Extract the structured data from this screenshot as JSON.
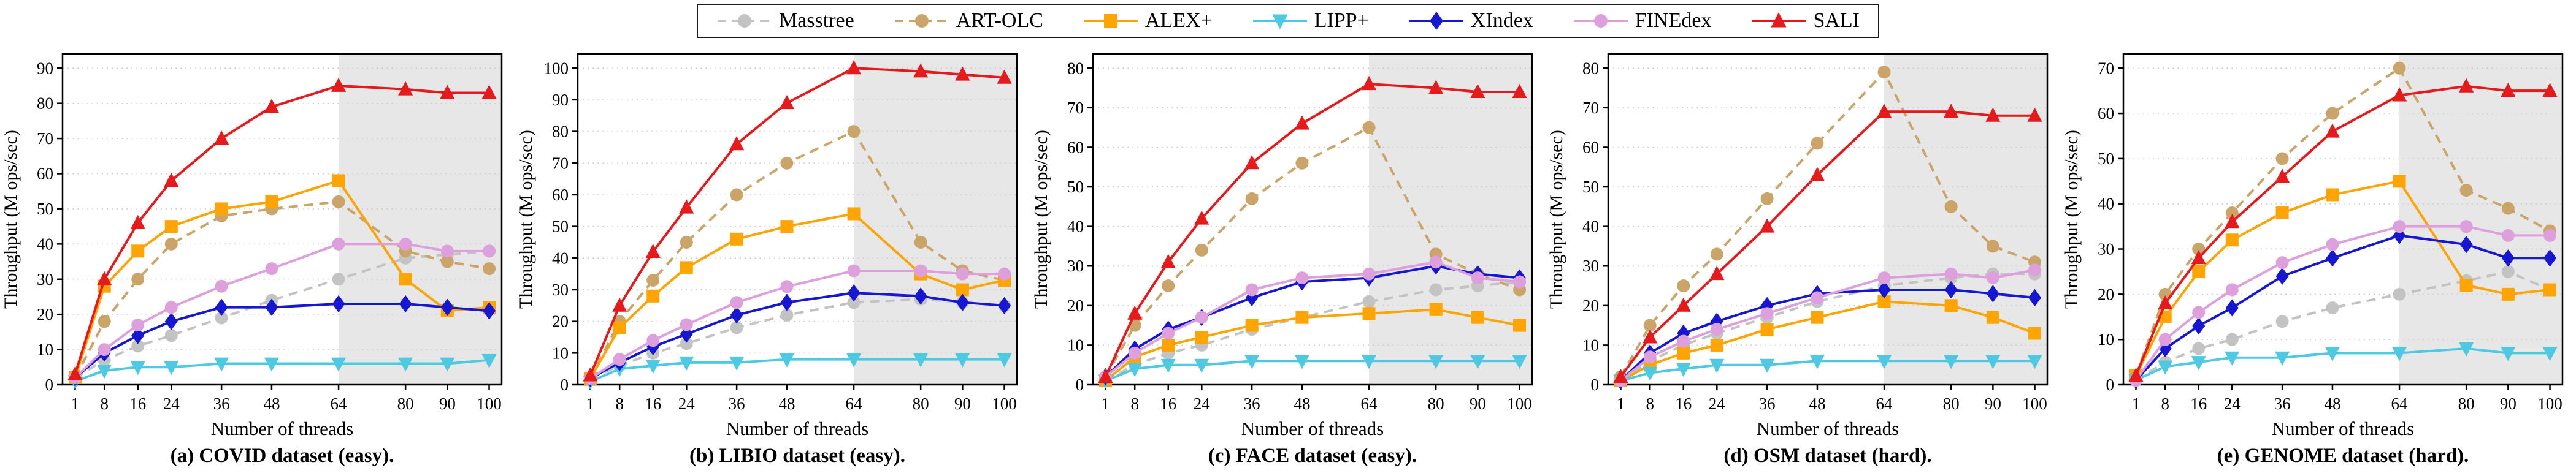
{
  "figure": {
    "kind": "five-panel line chart figure comparing index throughput scalability"
  },
  "legend": {
    "items": [
      "Masstree",
      "ART-OLC",
      "ALEX+",
      "LIPP+",
      "XIndex",
      "FINEdex",
      "SALI"
    ]
  },
  "series_styles": [
    {
      "name": "Masstree",
      "color": "#c3c3c3",
      "dash": true,
      "marker": "circle"
    },
    {
      "name": "ART-OLC",
      "color": "#cba469",
      "dash": true,
      "marker": "circle"
    },
    {
      "name": "ALEX+",
      "color": "#ffa405",
      "dash": false,
      "marker": "square"
    },
    {
      "name": "LIPP+",
      "color": "#4ec9e1",
      "dash": false,
      "marker": "triangle-down"
    },
    {
      "name": "XIndex",
      "color": "#1717d1",
      "dash": false,
      "marker": "diamond"
    },
    {
      "name": "FINEdex",
      "color": "#dda0dd",
      "dash": false,
      "marker": "circle"
    },
    {
      "name": "SALI",
      "color": "#e41a1c",
      "dash": false,
      "marker": "triangle-up"
    }
  ],
  "chart_data": [
    {
      "type": "line",
      "key": "covid",
      "title": "(a) COVID dataset (easy).",
      "xlabel": "Number of threads",
      "ylabel": "Throughput (M ops/sec)",
      "x": [
        1,
        8,
        16,
        24,
        36,
        48,
        64,
        80,
        90,
        100
      ],
      "xlim": [
        1,
        100
      ],
      "ylim": [
        0,
        90
      ],
      "ytick_step": 10,
      "grid": true,
      "shaded_region": [
        64,
        100
      ],
      "legend_position": "figure-top",
      "series": [
        {
          "name": "Masstree",
          "values": [
            2,
            7,
            11,
            14,
            19,
            24,
            30,
            36,
            37,
            38
          ]
        },
        {
          "name": "ART-OLC",
          "values": [
            2,
            18,
            30,
            40,
            48,
            50,
            52,
            38,
            35,
            33
          ]
        },
        {
          "name": "ALEX+",
          "values": [
            2,
            28,
            38,
            45,
            50,
            52,
            58,
            30,
            21,
            22
          ]
        },
        {
          "name": "LIPP+",
          "values": [
            1,
            4,
            5,
            5,
            6,
            6,
            6,
            6,
            6,
            7
          ]
        },
        {
          "name": "XIndex",
          "values": [
            2,
            9,
            14,
            18,
            22,
            22,
            23,
            23,
            22,
            21
          ]
        },
        {
          "name": "FINEdex",
          "values": [
            2,
            10,
            17,
            22,
            28,
            33,
            40,
            40,
            38,
            38
          ]
        },
        {
          "name": "SALI",
          "values": [
            3,
            30,
            46,
            58,
            70,
            79,
            85,
            84,
            83,
            83
          ]
        }
      ]
    },
    {
      "type": "line",
      "key": "libio",
      "title": "(b) LIBIO dataset (easy).",
      "xlabel": "Number of threads",
      "ylabel": "Throughput (M ops/sec)",
      "x": [
        1,
        8,
        16,
        24,
        36,
        48,
        64,
        80,
        90,
        100
      ],
      "xlim": [
        1,
        100
      ],
      "ylim": [
        0,
        100
      ],
      "ytick_step": 10,
      "grid": true,
      "shaded_region": [
        64,
        100
      ],
      "legend_position": "figure-top",
      "series": [
        {
          "name": "Masstree",
          "values": [
            2,
            6,
            10,
            13,
            18,
            22,
            26,
            27,
            26,
            25
          ]
        },
        {
          "name": "ART-OLC",
          "values": [
            2,
            20,
            33,
            45,
            60,
            70,
            80,
            45,
            36,
            33
          ]
        },
        {
          "name": "ALEX+",
          "values": [
            2,
            18,
            28,
            37,
            46,
            50,
            54,
            35,
            30,
            33
          ]
        },
        {
          "name": "LIPP+",
          "values": [
            1,
            5,
            6,
            7,
            7,
            8,
            8,
            8,
            8,
            8
          ]
        },
        {
          "name": "XIndex",
          "values": [
            2,
            7,
            12,
            16,
            22,
            26,
            29,
            28,
            26,
            25
          ]
        },
        {
          "name": "FINEdex",
          "values": [
            2,
            8,
            14,
            19,
            26,
            31,
            36,
            36,
            35,
            35
          ]
        },
        {
          "name": "SALI",
          "values": [
            3,
            25,
            42,
            56,
            76,
            89,
            100,
            99,
            98,
            97
          ]
        }
      ]
    },
    {
      "type": "line",
      "key": "face",
      "title": "(c) FACE dataset (easy).",
      "xlabel": "Number of threads",
      "ylabel": "Throughput (M ops/sec)",
      "x": [
        1,
        8,
        16,
        24,
        36,
        48,
        64,
        80,
        90,
        100
      ],
      "xlim": [
        1,
        100
      ],
      "ylim": [
        0,
        80
      ],
      "ytick_step": 10,
      "grid": true,
      "shaded_region": [
        64,
        100
      ],
      "legend_position": "figure-top",
      "series": [
        {
          "name": "Masstree",
          "values": [
            1,
            5,
            8,
            10,
            14,
            17,
            21,
            24,
            25,
            26
          ]
        },
        {
          "name": "ART-OLC",
          "values": [
            2,
            15,
            25,
            34,
            47,
            56,
            65,
            33,
            28,
            24
          ]
        },
        {
          "name": "ALEX+",
          "values": [
            1,
            7,
            10,
            12,
            15,
            17,
            18,
            19,
            17,
            15
          ]
        },
        {
          "name": "LIPP+",
          "values": [
            1,
            4,
            5,
            5,
            6,
            6,
            6,
            6,
            6,
            6
          ]
        },
        {
          "name": "XIndex",
          "values": [
            2,
            9,
            14,
            17,
            22,
            26,
            27,
            30,
            28,
            27
          ]
        },
        {
          "name": "FINEdex",
          "values": [
            2,
            8,
            13,
            17,
            24,
            27,
            28,
            31,
            27,
            26
          ]
        },
        {
          "name": "SALI",
          "values": [
            2,
            18,
            31,
            42,
            56,
            66,
            76,
            75,
            74,
            74
          ]
        }
      ]
    },
    {
      "type": "line",
      "key": "osm",
      "title": "(d) OSM dataset (hard).",
      "xlabel": "Number of threads",
      "ylabel": "Throughput (M ops/sec)",
      "x": [
        1,
        8,
        16,
        24,
        36,
        48,
        64,
        80,
        90,
        100
      ],
      "xlim": [
        1,
        100
      ],
      "ylim": [
        0,
        80
      ],
      "ytick_step": 10,
      "grid": true,
      "shaded_region": [
        64,
        100
      ],
      "legend_position": "figure-top",
      "series": [
        {
          "name": "Masstree",
          "values": [
            1,
            6,
            10,
            13,
            17,
            21,
            25,
            27,
            28,
            28
          ]
        },
        {
          "name": "ART-OLC",
          "values": [
            2,
            15,
            25,
            33,
            47,
            61,
            79,
            45,
            35,
            31
          ]
        },
        {
          "name": "ALEX+",
          "values": [
            1,
            5,
            8,
            10,
            14,
            17,
            21,
            20,
            17,
            13
          ]
        },
        {
          "name": "LIPP+",
          "values": [
            1,
            3,
            4,
            5,
            5,
            6,
            6,
            6,
            6,
            6
          ]
        },
        {
          "name": "XIndex",
          "values": [
            1,
            8,
            13,
            16,
            20,
            23,
            24,
            24,
            23,
            22
          ]
        },
        {
          "name": "FINEdex",
          "values": [
            1,
            7,
            11,
            14,
            18,
            22,
            27,
            28,
            27,
            29
          ]
        },
        {
          "name": "SALI",
          "values": [
            2,
            12,
            20,
            28,
            40,
            53,
            69,
            69,
            68,
            68
          ]
        }
      ]
    },
    {
      "type": "line",
      "key": "genome",
      "title": "(e) GENOME dataset (hard).",
      "xlabel": "Number of threads",
      "ylabel": "Throughput (M ops/sec)",
      "x": [
        1,
        8,
        16,
        24,
        36,
        48,
        64,
        80,
        90,
        100
      ],
      "xlim": [
        1,
        100
      ],
      "ylim": [
        0,
        70
      ],
      "ytick_step": 10,
      "grid": true,
      "shaded_region": [
        64,
        100
      ],
      "legend_position": "figure-top",
      "series": [
        {
          "name": "Masstree",
          "values": [
            1,
            5,
            8,
            10,
            14,
            17,
            20,
            23,
            25,
            21
          ]
        },
        {
          "name": "ART-OLC",
          "values": [
            2,
            20,
            30,
            38,
            50,
            60,
            70,
            43,
            39,
            34
          ]
        },
        {
          "name": "ALEX+",
          "values": [
            2,
            15,
            25,
            32,
            38,
            42,
            45,
            22,
            20,
            21
          ]
        },
        {
          "name": "LIPP+",
          "values": [
            1,
            4,
            5,
            6,
            6,
            7,
            7,
            8,
            7,
            7
          ]
        },
        {
          "name": "XIndex",
          "values": [
            1,
            8,
            13,
            17,
            24,
            28,
            33,
            31,
            28,
            28
          ]
        },
        {
          "name": "FINEdex",
          "values": [
            1,
            10,
            16,
            21,
            27,
            31,
            35,
            35,
            33,
            33
          ]
        },
        {
          "name": "SALI",
          "values": [
            2,
            18,
            28,
            36,
            46,
            56,
            64,
            66,
            65,
            65
          ]
        }
      ]
    }
  ],
  "style": {
    "shade_color": "#e7e7e7",
    "grid_color": "#cfcfcf",
    "axis_color": "#000000"
  }
}
